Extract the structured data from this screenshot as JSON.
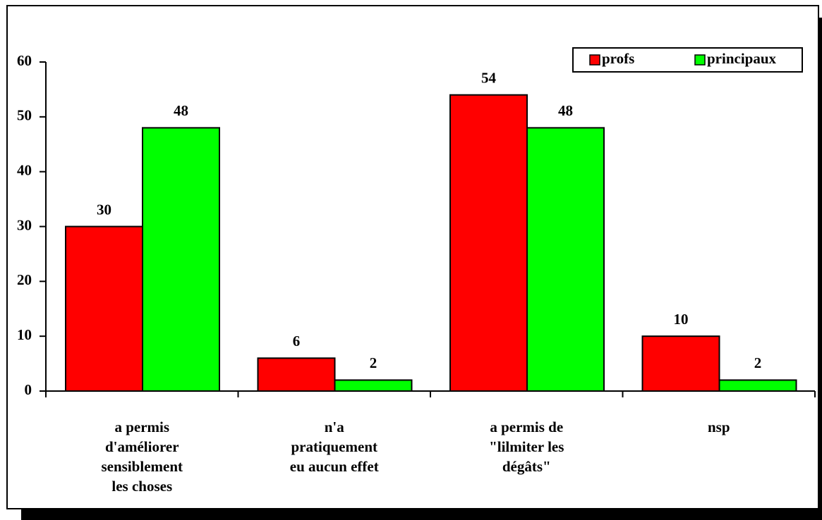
{
  "chart_data": {
    "type": "bar",
    "categories": [
      "a permis\nd'améliorer\nsensiblement\nles choses",
      "n'a\npratiquement\neu aucun effet",
      "a permis de\n\"lilmiter les\ndégâts\"",
      "nsp"
    ],
    "series": [
      {
        "name": "profs",
        "color": "#ff0000",
        "values": [
          30,
          6,
          54,
          10
        ]
      },
      {
        "name": "principaux",
        "color": "#00ff00",
        "values": [
          48,
          2,
          48,
          2
        ]
      }
    ],
    "ylim": [
      0,
      60
    ],
    "yticks": [
      0,
      10,
      20,
      30,
      40,
      50,
      60
    ],
    "legend": "top-right",
    "grid": false
  }
}
